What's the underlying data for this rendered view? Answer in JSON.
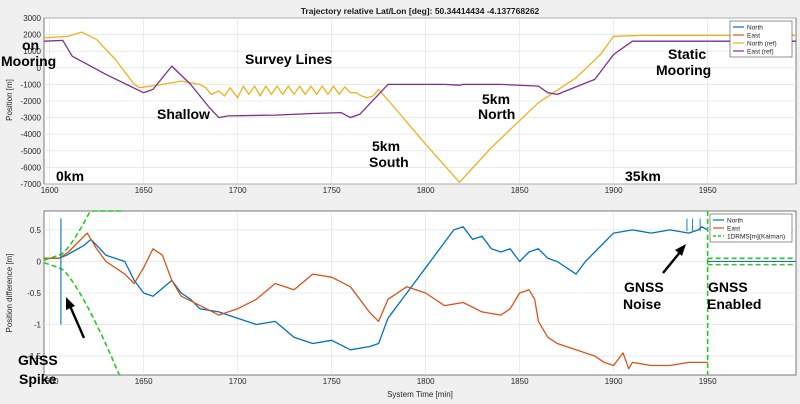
{
  "chart_data": [
    {
      "type": "line",
      "title": "Trajectory relative Lat/Lon [deg]: 50.34414434     -4.137768262",
      "xlabel": "",
      "ylabel": "Position [m]",
      "xlim": [
        1597,
        1997
      ],
      "ylim": [
        -7000,
        3000
      ],
      "xticks": [
        1600,
        1650,
        1700,
        1750,
        1800,
        1850,
        1900,
        1950
      ],
      "yticks": [
        3000,
        2000,
        1000,
        0,
        -1000,
        -2000,
        -3000,
        -4000,
        -5000,
        -6000,
        -7000
      ],
      "grid": true,
      "legend_position": "top-right",
      "series": [
        {
          "name": "North",
          "color": "#0072bd",
          "x": [],
          "y": []
        },
        {
          "name": "East",
          "color": "#d95319",
          "x": [],
          "y": []
        },
        {
          "name": "North (ref)",
          "color": "#edb120",
          "x": [
            1597,
            1610,
            1617,
            1625,
            1635,
            1645,
            1648,
            1660,
            1670,
            1680,
            1683,
            1686,
            1690,
            1693,
            1696,
            1700,
            1703,
            1706,
            1709,
            1712,
            1715,
            1718,
            1721,
            1724,
            1727,
            1730,
            1733,
            1736,
            1739,
            1742,
            1745,
            1748,
            1751,
            1754,
            1757,
            1760,
            1763,
            1766,
            1769,
            1772,
            1775,
            1785,
            1800,
            1818,
            1835,
            1860,
            1880,
            1893,
            1900,
            1915,
            1950,
            1997
          ],
          "y": [
            1800,
            1900,
            2150,
            1700,
            500,
            -1000,
            -1200,
            -1000,
            -800,
            -1000,
            -1200,
            -1600,
            -1400,
            -1700,
            -1200,
            -1800,
            -1100,
            -1600,
            -1100,
            -1700,
            -1100,
            -1600,
            -1100,
            -1600,
            -1100,
            -1600,
            -1100,
            -1600,
            -1100,
            -1600,
            -1100,
            -1600,
            -1100,
            -1600,
            -1150,
            -1500,
            -1500,
            -1700,
            -1800,
            -1700,
            -1300,
            -2600,
            -4600,
            -6900,
            -4800,
            -2100,
            -600,
            800,
            1900,
            1950,
            1950,
            1950
          ]
        },
        {
          "name": "East (ref)",
          "color": "#7e2f8e",
          "x": [
            1597,
            1607,
            1612,
            1630,
            1650,
            1655,
            1665,
            1675,
            1685,
            1690,
            1695,
            1720,
            1740,
            1755,
            1760,
            1765,
            1780,
            1810,
            1818,
            1820,
            1840,
            1860,
            1865,
            1870,
            1890,
            1900,
            1910,
            1950,
            1997
          ],
          "y": [
            1600,
            1650,
            700,
            -400,
            -1500,
            -1300,
            100,
            -1000,
            -2400,
            -3000,
            -2900,
            -2850,
            -2750,
            -2700,
            -3000,
            -2800,
            -1000,
            -1000,
            -1050,
            -1000,
            -1000,
            -1100,
            -1500,
            -1600,
            -700,
            800,
            1600,
            1600,
            1600
          ]
        }
      ],
      "annotations": [
        "on",
        "Mooring",
        "Survey Lines",
        "Shallow",
        "5km",
        "South",
        "5km",
        "North",
        "Static",
        "Mooring",
        "0km",
        "35km"
      ]
    },
    {
      "type": "line",
      "title": "",
      "xlabel": "System Time [min]",
      "ylabel": "Position difference [m]",
      "xlim": [
        1597,
        1997
      ],
      "ylim": [
        -1.8,
        0.8
      ],
      "xticks": [
        1600,
        1650,
        1700,
        1750,
        1800,
        1850,
        1900,
        1950
      ],
      "yticks": [
        0.5,
        0,
        -0.5,
        -1,
        -1.5
      ],
      "grid": true,
      "legend_position": "top-right",
      "series": [
        {
          "name": "North",
          "color": "#0072bd",
          "x": [
            1597,
            1605,
            1609,
            1612,
            1618,
            1622,
            1630,
            1640,
            1645,
            1650,
            1655,
            1665,
            1670,
            1675,
            1680,
            1690,
            1700,
            1710,
            1720,
            1730,
            1740,
            1750,
            1760,
            1770,
            1775,
            1780,
            1790,
            1800,
            1810,
            1815,
            1820,
            1825,
            1830,
            1835,
            1840,
            1845,
            1850,
            1855,
            1860,
            1865,
            1870,
            1875,
            1880,
            1885,
            1890,
            1895,
            1900,
            1910,
            1920,
            1930,
            1940,
            1945,
            1947,
            1950
          ],
          "y": [
            0.05,
            0.05,
            0.1,
            0.15,
            0.25,
            0.35,
            0.1,
            0.0,
            -0.3,
            -0.5,
            -0.55,
            -0.3,
            -0.5,
            -0.6,
            -0.75,
            -0.8,
            -0.9,
            -1.0,
            -0.95,
            -1.2,
            -1.3,
            -1.25,
            -1.4,
            -1.35,
            -1.3,
            -0.9,
            -0.5,
            -0.1,
            0.3,
            0.5,
            0.55,
            0.35,
            0.4,
            0.2,
            0.15,
            0.2,
            0.0,
            0.15,
            0.2,
            0.05,
            0.0,
            -0.1,
            -0.2,
            0.0,
            0.15,
            0.3,
            0.45,
            0.5,
            0.45,
            0.5,
            0.45,
            0.5,
            0.55,
            0.5
          ]
        },
        {
          "name": "East",
          "color": "#d95319",
          "x": [
            1597,
            1605,
            1610,
            1615,
            1620,
            1625,
            1630,
            1640,
            1645,
            1650,
            1655,
            1660,
            1665,
            1670,
            1680,
            1690,
            1700,
            1710,
            1720,
            1730,
            1740,
            1750,
            1760,
            1770,
            1775,
            1780,
            1790,
            1800,
            1810,
            1820,
            1830,
            1840,
            1845,
            1850,
            1855,
            1858,
            1860,
            1865,
            1870,
            1880,
            1890,
            1895,
            1900,
            1905,
            1908,
            1910,
            1920,
            1930,
            1940,
            1950
          ],
          "y": [
            0.05,
            0.05,
            0.15,
            0.3,
            0.45,
            0.2,
            0.0,
            -0.2,
            -0.35,
            -0.1,
            0.2,
            0.1,
            -0.3,
            -0.55,
            -0.7,
            -0.85,
            -0.75,
            -0.6,
            -0.35,
            -0.45,
            -0.2,
            -0.25,
            -0.4,
            -0.8,
            -0.95,
            -0.6,
            -0.4,
            -0.5,
            -0.7,
            -0.65,
            -0.8,
            -0.85,
            -0.75,
            -0.5,
            -0.45,
            -0.6,
            -0.95,
            -1.2,
            -1.3,
            -1.4,
            -1.5,
            -1.6,
            -1.65,
            -1.45,
            -1.7,
            -1.6,
            -1.65,
            -1.65,
            -1.6,
            -1.6
          ]
        },
        {
          "name": "1DRMS[m](Kalman)",
          "color": "#22cc22"
        }
      ],
      "annotations": [
        "GNSS",
        "Spike",
        "GNSS",
        "Noise",
        "GNSS",
        "Enabled"
      ]
    }
  ]
}
